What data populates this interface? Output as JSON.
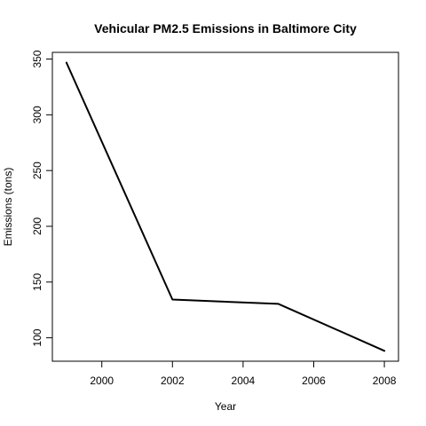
{
  "chart_data": {
    "type": "line",
    "title": "Vehicular PM2.5 Emissions in Baltimore City",
    "xlabel": "Year",
    "ylabel": "Emissions (tons)",
    "x": [
      1999,
      2002,
      2005,
      2008
    ],
    "series": [
      {
        "values": [
          346.8,
          134.3,
          130.4,
          88.3
        ]
      }
    ],
    "xlim": [
      1998.6,
      2008.4
    ],
    "ylim": [
      79.0,
      356.0
    ],
    "xticks": [
      2000,
      2002,
      2004,
      2006,
      2008
    ],
    "yticks": [
      100,
      150,
      200,
      250,
      300,
      350
    ],
    "line_color": "#000000",
    "grid": false,
    "legend": "none"
  }
}
